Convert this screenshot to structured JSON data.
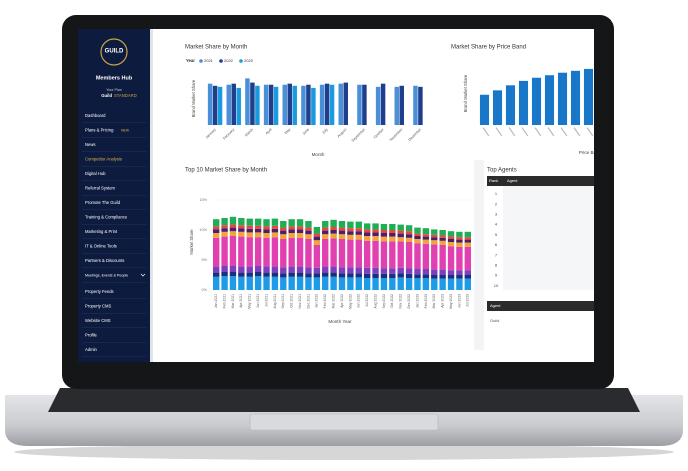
{
  "sidebar": {
    "logo": "GUILD",
    "hub": "Members Hub",
    "plan_label": "Your Plan",
    "plan_name": "Guild",
    "plan_tier": "STANDARD",
    "new_badge": "NEW",
    "menu": [
      "Dashboard",
      "Plans & Pricing",
      "News",
      "Competitor Analysis",
      "Digital Hub",
      "Referral System",
      "Promote The Guild",
      "Training & Compliance",
      "Marketing & Print",
      "IT & Online Tools",
      "Partners & Discounts",
      "Meetings, Events & People",
      "Property Feeds",
      "Property CMS",
      "Website CMS",
      "Profile",
      "Admin"
    ]
  },
  "chart_data": [
    {
      "type": "bar",
      "title": "Market Share by Month",
      "legend_title": "Year",
      "x_label": "Month",
      "y_label": "Brand Market Share",
      "categories": [
        "January",
        "February",
        "March",
        "April",
        "May",
        "June",
        "July",
        "August",
        "September",
        "October",
        "November",
        "December"
      ],
      "ylim": [
        0,
        100
      ],
      "series": [
        {
          "name": "2021",
          "color": "#4a90d9",
          "values": [
            78,
            76,
            88,
            76,
            76,
            74,
            76,
            78,
            76,
            72,
            72,
            74
          ]
        },
        {
          "name": "2022",
          "color": "#1f3f8c",
          "values": [
            74,
            78,
            80,
            76,
            78,
            76,
            78,
            80,
            76,
            78,
            74,
            72
          ]
        },
        {
          "name": "2023",
          "color": "#1a9be0",
          "values": [
            72,
            70,
            74,
            72,
            74,
            70,
            76,
            null,
            null,
            null,
            null,
            null
          ]
        }
      ]
    },
    {
      "type": "bar",
      "title": "Market Share by Price Band",
      "x_label": "Price Band",
      "y_label": "Brand Market Share",
      "color": "#1877c9",
      "ylim": [
        0,
        100
      ],
      "values": [
        48,
        55,
        63,
        70,
        75,
        79,
        83,
        86,
        89,
        91
      ]
    },
    {
      "type": "stacked-bar",
      "title": "Top 10 Market Share by Month",
      "x_label": "Month Year",
      "y_label": "Market Share",
      "ylim": [
        0,
        16
      ],
      "yticks": [
        {
          "value": 0,
          "label": "0%"
        },
        {
          "value": 5,
          "label": "5%"
        },
        {
          "value": 10,
          "label": "10%"
        },
        {
          "value": 15,
          "label": "15%"
        }
      ],
      "grid": true,
      "categories": [
        "Jan 2021",
        "Feb 2021",
        "Mar 2021",
        "Apr 2021",
        "May 2021",
        "Jun 2021",
        "Jul 2021",
        "Aug 2021",
        "Sep 2021",
        "Oct 2021",
        "Nov 2021",
        "Dec 2021",
        "Jan 2022",
        "Feb 2022",
        "Mar 2022",
        "Apr 2022",
        "May 2022",
        "Jun 2022",
        "Jul 2022",
        "Aug 2022",
        "Sep 2022",
        "Oct 2022",
        "Nov 2022",
        "Dec 2022",
        "Jan 2023",
        "Feb 2023",
        "Mar 2023",
        "Apr 2023",
        "May 2023",
        "Jun 2023",
        "Jul 2023"
      ],
      "series": [
        {
          "color": "#1e9be8",
          "values": [
            2.2,
            2.3,
            2.3,
            2.2,
            2.2,
            2.3,
            2.2,
            2.2,
            2.1,
            2.2,
            2.2,
            2.1,
            2.1,
            2.2,
            2.2,
            2.1,
            2.1,
            2.1,
            2.0,
            2.0,
            2.0,
            2.0,
            2.1,
            2.0,
            2.0,
            2.0,
            1.9,
            1.9,
            1.9,
            1.9,
            1.9
          ]
        },
        {
          "color": "#1b2f7a",
          "values": [
            0.7,
            0.7,
            0.7,
            0.7,
            0.7,
            0.7,
            0.7,
            0.7,
            0.7,
            0.7,
            0.7,
            0.7,
            0.7,
            0.7,
            0.7,
            0.7,
            0.7,
            0.7,
            0.7,
            0.7,
            0.7,
            0.7,
            0.7,
            0.7,
            0.6,
            0.6,
            0.6,
            0.6,
            0.6,
            0.6,
            0.6
          ]
        },
        {
          "color": "#7b3fbf",
          "values": [
            1.0,
            1.0,
            1.0,
            1.0,
            1.0,
            1.0,
            1.0,
            1.0,
            1.0,
            1.0,
            1.0,
            1.0,
            0.9,
            1.0,
            1.0,
            1.0,
            1.0,
            1.0,
            1.0,
            1.0,
            0.9,
            0.9,
            0.9,
            0.9,
            0.9,
            0.9,
            0.9,
            0.9,
            0.8,
            0.8,
            0.8
          ]
        },
        {
          "color": "#e040b0",
          "values": [
            4.8,
            4.9,
            5.0,
            5.0,
            4.9,
            4.8,
            4.8,
            4.9,
            4.7,
            4.8,
            4.8,
            4.7,
            3.8,
            4.6,
            4.7,
            4.7,
            4.6,
            4.6,
            4.5,
            4.5,
            4.5,
            4.5,
            4.4,
            4.4,
            4.3,
            4.2,
            4.2,
            4.1,
            4.0,
            3.9,
            3.9
          ]
        },
        {
          "color": "#f2a33a",
          "values": [
            0.8,
            0.8,
            0.8,
            0.8,
            0.8,
            0.8,
            0.8,
            0.8,
            0.8,
            0.8,
            0.8,
            0.8,
            0.8,
            0.8,
            0.8,
            0.8,
            0.8,
            0.8,
            0.8,
            0.8,
            0.8,
            0.8,
            0.7,
            0.7,
            0.7,
            0.7,
            0.7,
            0.7,
            0.7,
            0.7,
            0.7
          ]
        },
        {
          "color": "#4a1f6b",
          "values": [
            0.6,
            0.6,
            0.6,
            0.6,
            0.6,
            0.6,
            0.6,
            0.6,
            0.6,
            0.6,
            0.6,
            0.6,
            0.6,
            0.6,
            0.6,
            0.6,
            0.6,
            0.6,
            0.6,
            0.6,
            0.6,
            0.6,
            0.6,
            0.6,
            0.5,
            0.5,
            0.5,
            0.5,
            0.5,
            0.5,
            0.5
          ]
        },
        {
          "color": "#e8453c",
          "values": [
            0.5,
            0.5,
            0.5,
            0.5,
            0.5,
            0.5,
            0.5,
            0.5,
            0.5,
            0.5,
            0.5,
            0.5,
            0.5,
            0.5,
            0.5,
            0.5,
            0.5,
            0.5,
            0.5,
            0.5,
            0.5,
            0.5,
            0.5,
            0.5,
            0.4,
            0.4,
            0.4,
            0.4,
            0.4,
            0.4,
            0.4
          ]
        },
        {
          "color": "#1fae55",
          "values": [
            1.2,
            1.2,
            1.3,
            1.2,
            1.2,
            1.2,
            1.2,
            1.2,
            1.1,
            1.2,
            1.2,
            1.1,
            1.1,
            1.1,
            1.2,
            1.1,
            1.1,
            1.1,
            1.0,
            1.0,
            1.0,
            1.0,
            1.0,
            1.0,
            1.0,
            1.0,
            0.9,
            0.9,
            0.9,
            0.9,
            0.9
          ]
        }
      ]
    }
  ],
  "top_agents": {
    "title": "Top Agents",
    "headers": [
      "Rank",
      "Agent"
    ],
    "ranks": [
      "1",
      "2",
      "3",
      "4",
      "5",
      "6",
      "7",
      "8",
      "9",
      "10"
    ],
    "footer_header": "Agent",
    "footer_value": "Guild"
  }
}
